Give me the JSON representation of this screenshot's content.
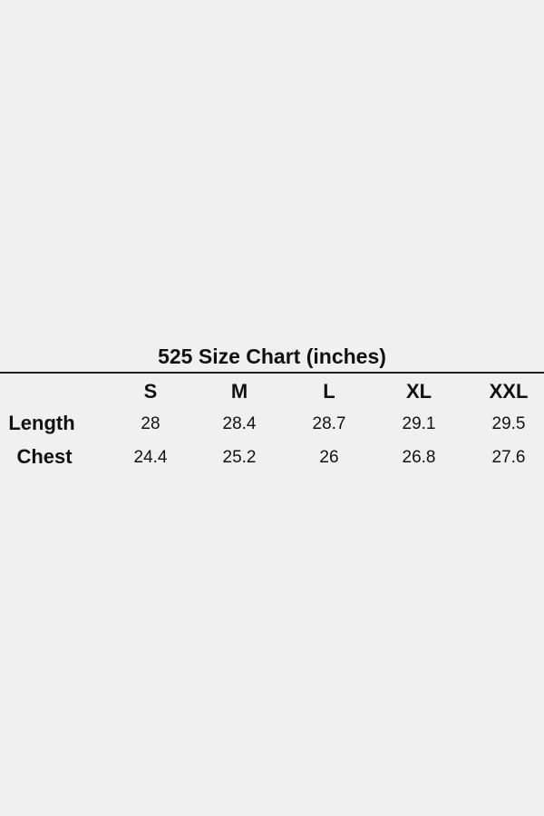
{
  "title": "525 Size Chart (inches)",
  "columns": [
    "S",
    "M",
    "L",
    "XL",
    "XXL"
  ],
  "rows": [
    {
      "label": "Length",
      "values": [
        "28",
        "28.4",
        "28.7",
        "29.1",
        "29.5"
      ]
    },
    {
      "label": "Chest",
      "values": [
        "24.4",
        "25.2",
        "26",
        "26.8",
        "27.6"
      ]
    }
  ]
}
